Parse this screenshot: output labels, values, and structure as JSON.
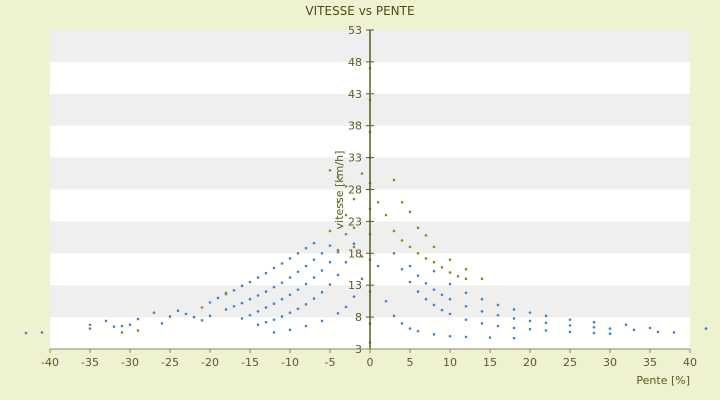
{
  "chart_data": {
    "type": "scatter",
    "title": "VITESSE vs PENTE",
    "xlabel": "Pente [%]",
    "ylabel": "vitesse [km/h]",
    "xlim": [
      -40,
      40
    ],
    "ylim": [
      3,
      53
    ],
    "x_ticks": [
      -40,
      -35,
      -30,
      -25,
      -20,
      -15,
      -10,
      -5,
      0,
      5,
      10,
      15,
      20,
      25,
      30,
      35,
      40
    ],
    "y_ticks": [
      3,
      8,
      13,
      18,
      23,
      28,
      33,
      38,
      43,
      48,
      53
    ],
    "grid": "horizontal alternating bands",
    "legend": "none",
    "series": [
      {
        "color": "#3f84cc",
        "points": [
          [
            -43,
            5.5
          ],
          [
            -41,
            5.6
          ],
          [
            -35,
            6.2
          ],
          [
            -33,
            7.4
          ],
          [
            -32,
            6.5
          ],
          [
            -31,
            6.6
          ],
          [
            -30,
            6.8
          ],
          [
            -29,
            7.7
          ],
          [
            -27,
            8.7
          ],
          [
            -26,
            7.0
          ],
          [
            -25,
            8.1
          ],
          [
            -24,
            9.0
          ],
          [
            -23,
            8.5
          ],
          [
            -22,
            8.0
          ],
          [
            -21,
            7.5
          ],
          [
            -20,
            8.2
          ],
          [
            -20,
            10.3
          ],
          [
            -19,
            11.0
          ],
          [
            -18,
            11.6
          ],
          [
            -17,
            12.2
          ],
          [
            -16,
            12.9
          ],
          [
            -15,
            13.5
          ],
          [
            -14,
            14.2
          ],
          [
            -13,
            14.9
          ],
          [
            -12,
            15.7
          ],
          [
            -11,
            16.4
          ],
          [
            -10,
            17.2
          ],
          [
            -9,
            18.0
          ],
          [
            -8,
            18.8
          ],
          [
            -7,
            19.6
          ],
          [
            -18,
            9.2
          ],
          [
            -17,
            9.7
          ],
          [
            -16,
            10.2
          ],
          [
            -15,
            10.8
          ],
          [
            -14,
            11.4
          ],
          [
            -13,
            12.0
          ],
          [
            -12,
            12.7
          ],
          [
            -11,
            13.4
          ],
          [
            -10,
            14.2
          ],
          [
            -9,
            15.1
          ],
          [
            -8,
            16.0
          ],
          [
            -7,
            17.0
          ],
          [
            -6,
            18.0
          ],
          [
            -5,
            19.2
          ],
          [
            -16,
            7.8
          ],
          [
            -15,
            8.3
          ],
          [
            -14,
            8.9
          ],
          [
            -13,
            9.5
          ],
          [
            -12,
            10.1
          ],
          [
            -11,
            10.8
          ],
          [
            -10,
            11.5
          ],
          [
            -9,
            12.3
          ],
          [
            -8,
            13.2
          ],
          [
            -7,
            14.2
          ],
          [
            -6,
            15.3
          ],
          [
            -5,
            16.6
          ],
          [
            -4,
            18.2
          ],
          [
            -14,
            6.8
          ],
          [
            -13,
            7.2
          ],
          [
            -12,
            7.6
          ],
          [
            -11,
            8.1
          ],
          [
            -10,
            8.7
          ],
          [
            -9,
            9.3
          ],
          [
            -8,
            10.0
          ],
          [
            -7,
            10.9
          ],
          [
            -6,
            11.9
          ],
          [
            -5,
            13.1
          ],
          [
            -4,
            14.6
          ],
          [
            -3,
            16.6
          ],
          [
            -2,
            19.5
          ],
          [
            -12,
            5.6
          ],
          [
            -10,
            6.0
          ],
          [
            -8,
            6.6
          ],
          [
            -6,
            7.4
          ],
          [
            -4,
            8.6
          ],
          [
            -3,
            9.6
          ],
          [
            -2,
            11.2
          ],
          [
            -1,
            14.0
          ],
          [
            1,
            16.0
          ],
          [
            2,
            10.5
          ],
          [
            3,
            8.2
          ],
          [
            4,
            7.0
          ],
          [
            5,
            6.2
          ],
          [
            6,
            5.8
          ],
          [
            8,
            5.3
          ],
          [
            10,
            5.0
          ],
          [
            12,
            4.9
          ],
          [
            15,
            4.8
          ],
          [
            18,
            4.7
          ],
          [
            3,
            18.0
          ],
          [
            4,
            15.5
          ],
          [
            5,
            13.5
          ],
          [
            6,
            12.0
          ],
          [
            7,
            10.8
          ],
          [
            8,
            9.9
          ],
          [
            9,
            9.1
          ],
          [
            10,
            8.5
          ],
          [
            12,
            7.6
          ],
          [
            14,
            7.0
          ],
          [
            16,
            6.6
          ],
          [
            18,
            6.3
          ],
          [
            20,
            6.1
          ],
          [
            22,
            5.9
          ],
          [
            25,
            5.7
          ],
          [
            28,
            5.5
          ],
          [
            30,
            5.4
          ],
          [
            5,
            16.0
          ],
          [
            6,
            14.5
          ],
          [
            7,
            13.3
          ],
          [
            8,
            12.3
          ],
          [
            9,
            11.5
          ],
          [
            10,
            10.8
          ],
          [
            12,
            9.7
          ],
          [
            14,
            8.9
          ],
          [
            16,
            8.3
          ],
          [
            18,
            7.8
          ],
          [
            20,
            7.4
          ],
          [
            22,
            7.1
          ],
          [
            25,
            6.7
          ],
          [
            28,
            6.4
          ],
          [
            30,
            6.2
          ],
          [
            33,
            6.0
          ],
          [
            36,
            5.7
          ],
          [
            8,
            15.2
          ],
          [
            10,
            13.2
          ],
          [
            12,
            11.8
          ],
          [
            14,
            10.8
          ],
          [
            16,
            9.9
          ],
          [
            18,
            9.2
          ],
          [
            20,
            8.7
          ],
          [
            22,
            8.2
          ],
          [
            25,
            7.6
          ],
          [
            28,
            7.2
          ],
          [
            32,
            6.8
          ],
          [
            35,
            6.3
          ],
          [
            38,
            5.6
          ],
          [
            42,
            6.2
          ]
        ]
      },
      {
        "color": "#8a8a1e",
        "points": [
          [
            -35,
            6.8
          ],
          [
            -31,
            5.6
          ],
          [
            -29,
            5.9
          ],
          [
            -21,
            9.5
          ],
          [
            -18,
            11.8
          ],
          [
            -5,
            31.0
          ],
          [
            -4,
            30.0
          ],
          [
            -3,
            28.5
          ],
          [
            -4,
            26.0
          ],
          [
            -3,
            24.0
          ],
          [
            -2,
            22.0
          ],
          [
            -3,
            21.0
          ],
          [
            -2,
            19.0
          ],
          [
            -1,
            17.5
          ],
          [
            -4,
            18.5
          ],
          [
            -5,
            21.5
          ],
          [
            -2,
            26.5
          ],
          [
            -1,
            30.5
          ],
          [
            0,
            47.0
          ],
          [
            0,
            42.0
          ],
          [
            0,
            37.0
          ],
          [
            0,
            33.0
          ],
          [
            0,
            29.0
          ],
          [
            0,
            25.0
          ],
          [
            0,
            21.0
          ],
          [
            0,
            17.0
          ],
          [
            0,
            12.0
          ],
          [
            0,
            7.0
          ],
          [
            0,
            4.0
          ],
          [
            1,
            26.0
          ],
          [
            2,
            24.0
          ],
          [
            3,
            21.5
          ],
          [
            4,
            20.0
          ],
          [
            5,
            19.0
          ],
          [
            6,
            18.0
          ],
          [
            7,
            17.2
          ],
          [
            8,
            16.6
          ],
          [
            9,
            15.8
          ],
          [
            10,
            15.0
          ],
          [
            11,
            14.4
          ],
          [
            12,
            14.0
          ],
          [
            3,
            29.5
          ],
          [
            4,
            26.0
          ],
          [
            5,
            24.5
          ],
          [
            6,
            22.0
          ],
          [
            7,
            20.8
          ],
          [
            8,
            19.0
          ],
          [
            10,
            17.0
          ],
          [
            12,
            15.5
          ],
          [
            14,
            14.0
          ]
        ]
      }
    ]
  }
}
